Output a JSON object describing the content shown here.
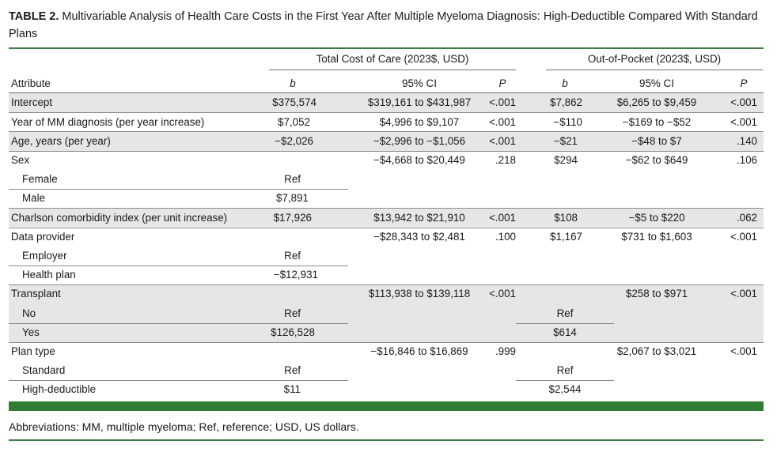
{
  "title": {
    "label": "TABLE 2.",
    "text": "Multivariable Analysis of Health Care Costs in the First Year After Multiple Myeloma Diagnosis: High-Deductible Compared With Standard Plans"
  },
  "groups": {
    "total": "Total Cost of Care (2023$, USD)",
    "oop": "Out-of-Pocket (2023$, USD)"
  },
  "headers": {
    "attribute": "Attribute",
    "b1": "b",
    "ci1": "95% CI",
    "p1": "P",
    "b2": "b",
    "ci2": "95% CI",
    "p2": "P"
  },
  "rows": [
    {
      "attr": "Intercept",
      "b1": "$375,574",
      "ci1": "$319,161 to $431,987",
      "p1": "<.001",
      "b2": "$7,862",
      "ci2": "$6,265 to $9,459",
      "p2": "<.001"
    },
    {
      "attr": "Year of MM diagnosis (per year increase)",
      "b1": "$7,052",
      "ci1": "$4,996 to $9,107",
      "p1": "<.001",
      "b2": "−$110",
      "ci2": "−$169 to −$52",
      "p2": "<.001"
    },
    {
      "attr": "Age, years (per year)",
      "b1": "−$2,026",
      "ci1": "−$2,996 to −$1,056",
      "p1": "<.001",
      "b2": "−$21",
      "ci2": "−$48 to $7",
      "p2": ".140"
    },
    {
      "attr": "Sex",
      "b1": "",
      "ci1": "−$4,668 to $20,449",
      "p1": ".218",
      "b2": "$294",
      "ci2": "−$62 to $649",
      "p2": ".106"
    },
    {
      "attr": "Female",
      "b1": "Ref",
      "ci1": "",
      "p1": "",
      "b2": "",
      "ci2": "",
      "p2": ""
    },
    {
      "attr": "Male",
      "b1": "$7,891",
      "ci1": "",
      "p1": "",
      "b2": "",
      "ci2": "",
      "p2": ""
    },
    {
      "attr": "Charlson comorbidity index (per unit increase)",
      "b1": "$17,926",
      "ci1": "$13,942 to $21,910",
      "p1": "<.001",
      "b2": "$108",
      "ci2": "−$5 to $220",
      "p2": ".062"
    },
    {
      "attr": "Data provider",
      "b1": "",
      "ci1": "−$28,343 to $2,481",
      "p1": ".100",
      "b2": "$1,167",
      "ci2": "$731 to $1,603",
      "p2": "<.001"
    },
    {
      "attr": "Employer",
      "b1": "Ref",
      "ci1": "",
      "p1": "",
      "b2": "",
      "ci2": "",
      "p2": ""
    },
    {
      "attr": "Health plan",
      "b1": "−$12,931",
      "ci1": "",
      "p1": "",
      "b2": "",
      "ci2": "",
      "p2": ""
    },
    {
      "attr": "Transplant",
      "b1": "",
      "ci1": "$113,938 to $139,118",
      "p1": "<.001",
      "b2": "",
      "ci2": "$258 to $971",
      "p2": "<.001"
    },
    {
      "attr": "No",
      "b1": "Ref",
      "ci1": "",
      "p1": "",
      "b2": "Ref",
      "ci2": "",
      "p2": ""
    },
    {
      "attr": "Yes",
      "b1": "$126,528",
      "ci1": "",
      "p1": "",
      "b2": "$614",
      "ci2": "",
      "p2": ""
    },
    {
      "attr": "Plan type",
      "b1": "",
      "ci1": "−$16,846 to $16,869",
      "p1": ".999",
      "b2": "",
      "ci2": "$2,067 to $3,021",
      "p2": "<.001"
    },
    {
      "attr": "Standard",
      "b1": "Ref",
      "ci1": "",
      "p1": "",
      "b2": "Ref",
      "ci2": "",
      "p2": ""
    },
    {
      "attr": "High-deductible",
      "b1": "$11",
      "ci1": "",
      "p1": "",
      "b2": "$2,544",
      "ci2": "",
      "p2": ""
    }
  ],
  "footnote": "Abbreviations: MM, multiple myeloma; Ref, reference; USD, US dollars."
}
